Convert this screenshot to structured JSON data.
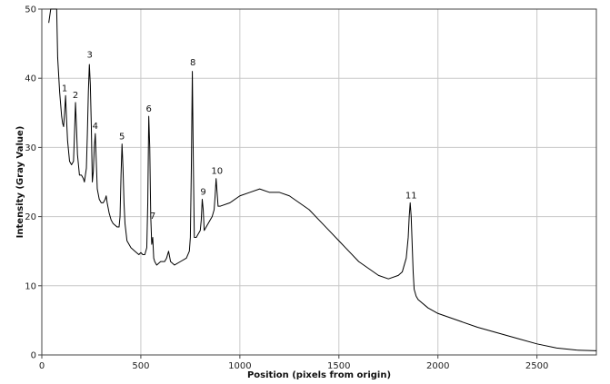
{
  "chart_data": {
    "type": "line",
    "title": "",
    "xlabel": "Position (pixels from origin)",
    "ylabel": "Intensity (Gray Value)",
    "xlim": [
      0,
      2800
    ],
    "ylim": [
      0,
      50
    ],
    "x_ticks": [
      0,
      500,
      1000,
      1500,
      2000,
      2500
    ],
    "y_ticks": [
      0,
      10,
      20,
      30,
      40,
      50
    ],
    "grid": true,
    "legend": "none",
    "line_color": "#000000",
    "series": [
      {
        "x": [
          35,
          40,
          45,
          50,
          60,
          70,
          75,
          80,
          90,
          100,
          105,
          110,
          115,
          120,
          125,
          130,
          140,
          150,
          160,
          165,
          170,
          175,
          180,
          190,
          200,
          210,
          215,
          220,
          225,
          230,
          235,
          240,
          245,
          250,
          255,
          260,
          265,
          270,
          275,
          280,
          290,
          300,
          310,
          320,
          325,
          330,
          340,
          350,
          360,
          380,
          390,
          395,
          400,
          405,
          410,
          415,
          420,
          430,
          450,
          470,
          490,
          500,
          510,
          520,
          530,
          535,
          540,
          545,
          550,
          555,
          560,
          565,
          570,
          580,
          600,
          620,
          630,
          640,
          650,
          670,
          700,
          730,
          745,
          750,
          755,
          760,
          765,
          770,
          780,
          790,
          800,
          805,
          810,
          815,
          820,
          830,
          850,
          860,
          870,
          875,
          880,
          885,
          890,
          900,
          950,
          1000,
          1050,
          1100,
          1150,
          1200,
          1250,
          1300,
          1350,
          1400,
          1450,
          1500,
          1550,
          1600,
          1650,
          1700,
          1750,
          1800,
          1820,
          1840,
          1850,
          1855,
          1860,
          1865,
          1870,
          1875,
          1880,
          1890,
          1900,
          1950,
          2000,
          2100,
          2200,
          2300,
          2400,
          2500,
          2600,
          2700,
          2800
        ],
        "y": [
          48,
          49,
          50,
          50,
          50,
          50,
          50,
          43,
          38,
          34.5,
          33.5,
          33,
          35,
          37.5,
          34,
          31,
          28,
          27.5,
          28,
          32,
          36.5,
          33,
          29,
          26,
          26,
          25.5,
          25,
          26,
          27,
          32,
          38,
          42,
          39,
          33,
          25,
          26.5,
          30,
          32,
          28,
          24,
          22.5,
          22,
          22,
          22.5,
          23,
          22,
          20.5,
          19.5,
          19,
          18.5,
          18.5,
          20,
          26,
          30.5,
          27,
          22,
          19,
          16.5,
          15.5,
          15,
          14.5,
          14.8,
          14.5,
          14.5,
          15.5,
          22,
          34.5,
          30,
          20,
          16,
          17,
          14,
          13.5,
          13,
          13.5,
          13.5,
          14,
          15,
          13.5,
          13,
          13.5,
          14,
          15,
          17,
          27,
          41,
          28,
          17,
          17,
          17.5,
          18,
          19.5,
          22.5,
          21,
          18,
          18.5,
          19.5,
          20,
          21,
          23,
          25.5,
          23.5,
          21.5,
          21.5,
          22,
          23,
          23.5,
          24,
          23.5,
          23.5,
          23,
          22,
          21,
          19.5,
          18,
          16.5,
          15,
          13.5,
          12.5,
          11.5,
          11,
          11.5,
          12,
          14,
          17,
          20,
          22,
          20,
          16,
          12,
          9.5,
          8.5,
          8,
          6.8,
          6,
          5,
          4,
          3.2,
          2.4,
          1.6,
          1,
          0.7,
          0.6
        ]
      }
    ],
    "annotations": [
      {
        "label": "1",
        "x": 115,
        "y": 37.5
      },
      {
        "label": "2",
        "x": 170,
        "y": 36.5
      },
      {
        "label": "3",
        "x": 242,
        "y": 42.3
      },
      {
        "label": "4",
        "x": 270,
        "y": 32
      },
      {
        "label": "5",
        "x": 405,
        "y": 30.5
      },
      {
        "label": "6",
        "x": 540,
        "y": 34.5
      },
      {
        "label": "7",
        "x": 560,
        "y": 19
      },
      {
        "label": "8",
        "x": 763,
        "y": 41.2
      },
      {
        "label": "9",
        "x": 815,
        "y": 22.5
      },
      {
        "label": "10",
        "x": 885,
        "y": 25.5
      },
      {
        "label": "11",
        "x": 1865,
        "y": 22
      }
    ]
  }
}
